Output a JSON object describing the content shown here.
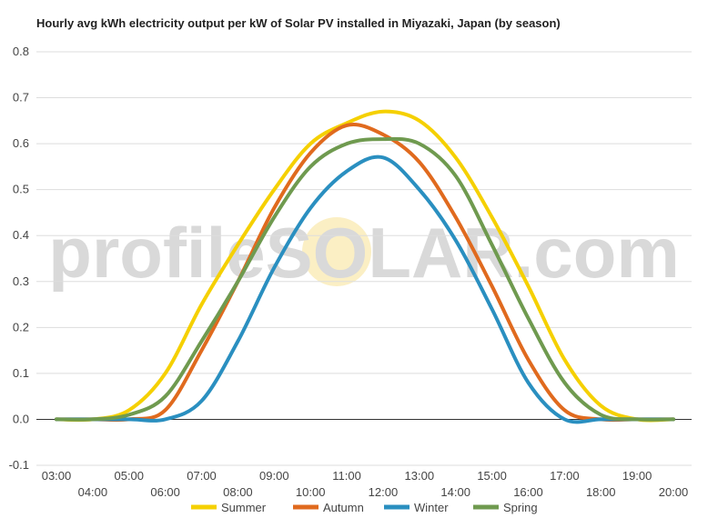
{
  "chart_data": {
    "type": "line",
    "title": "Hourly avg kWh electricity output per kW of Solar PV installed in Miyazaki, Japan (by season)",
    "xlabel": "",
    "ylabel": "",
    "ylim": [
      -0.1,
      0.8
    ],
    "yticks": [
      "-0.1",
      "0.0",
      "0.1",
      "0.2",
      "0.3",
      "0.4",
      "0.5",
      "0.6",
      "0.7",
      "0.8"
    ],
    "x": [
      "03:00",
      "04:00",
      "05:00",
      "06:00",
      "07:00",
      "08:00",
      "09:00",
      "10:00",
      "11:00",
      "12:00",
      "13:00",
      "14:00",
      "15:00",
      "16:00",
      "17:00",
      "18:00",
      "19:00",
      "20:00"
    ],
    "grid": true,
    "legend_position": "bottom",
    "series": [
      {
        "name": "Summer",
        "color": "#f5d000",
        "values": [
          0.0,
          0.0,
          0.02,
          0.1,
          0.25,
          0.38,
          0.5,
          0.6,
          0.645,
          0.67,
          0.65,
          0.57,
          0.44,
          0.29,
          0.13,
          0.03,
          0.0,
          0.0
        ]
      },
      {
        "name": "Autumn",
        "color": "#e06a1e",
        "values": [
          0.0,
          0.0,
          0.0,
          0.02,
          0.15,
          0.3,
          0.46,
          0.58,
          0.64,
          0.62,
          0.56,
          0.44,
          0.29,
          0.13,
          0.02,
          0.0,
          0.0,
          0.0
        ]
      },
      {
        "name": "Winter",
        "color": "#2a8fc0",
        "values": [
          0.0,
          0.0,
          0.0,
          0.0,
          0.04,
          0.17,
          0.33,
          0.46,
          0.54,
          0.57,
          0.5,
          0.39,
          0.24,
          0.08,
          0.0,
          0.0,
          0.0,
          0.0
        ]
      },
      {
        "name": "Spring",
        "color": "#6f9a4f",
        "values": [
          0.0,
          0.0,
          0.01,
          0.05,
          0.17,
          0.3,
          0.44,
          0.55,
          0.6,
          0.61,
          0.6,
          0.53,
          0.38,
          0.22,
          0.08,
          0.01,
          0.0,
          0.0
        ]
      }
    ],
    "watermark": "profileSOLAR.com"
  }
}
